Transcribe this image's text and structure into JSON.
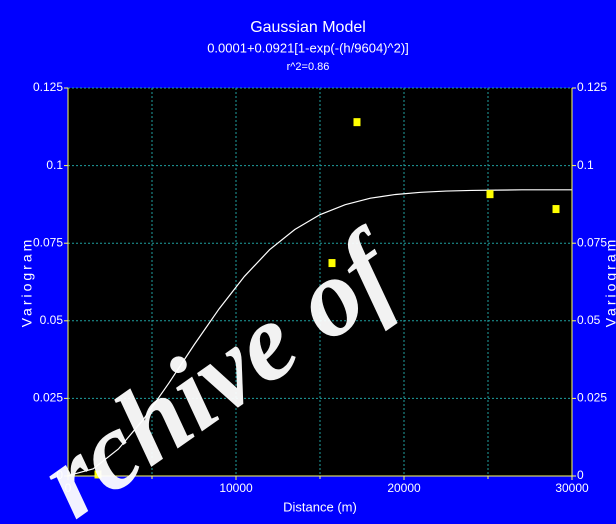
{
  "chart_data": {
    "type": "scatter",
    "title": "Gaussian Model",
    "subtitle": "0.0001+0.0921[1-exp(-(h/9604)^2)]",
    "annotation": "r^2=0.86",
    "x_label": "Distance (m)",
    "y_label": "Variogram",
    "y2_label": "Variogram",
    "watermark": "rchive of",
    "xlim": [
      0,
      30000
    ],
    "xticks": [
      0,
      10000,
      20000,
      30000
    ],
    "x_minor_grid": [
      5000,
      15000,
      25000
    ],
    "ylim": [
      0,
      0.125
    ],
    "yticks": [
      0,
      0.025,
      0.05,
      0.075,
      0.1,
      0.125
    ],
    "grid": true,
    "points": {
      "color": "#ffff00",
      "x": [
        1786,
        15714,
        17202,
        25119,
        29048
      ],
      "values": [
        0.0005,
        0.0686,
        0.114,
        0.0908,
        0.086
      ]
    },
    "model": {
      "color": "#ffffff",
      "x": [
        0,
        1500,
        3000,
        4500,
        6000,
        7500,
        9000,
        10500,
        12000,
        13500,
        15000,
        16500,
        18000,
        19500,
        21000,
        22500,
        24000,
        25500,
        27000,
        28500,
        30000
      ],
      "values": [
        0.0001,
        0.0023,
        0.0087,
        0.0183,
        0.0299,
        0.0422,
        0.0539,
        0.0643,
        0.0729,
        0.0794,
        0.0842,
        0.0874,
        0.0895,
        0.0907,
        0.0914,
        0.0918,
        0.092,
        0.0921,
        0.0922,
        0.0922,
        0.0922
      ]
    }
  }
}
